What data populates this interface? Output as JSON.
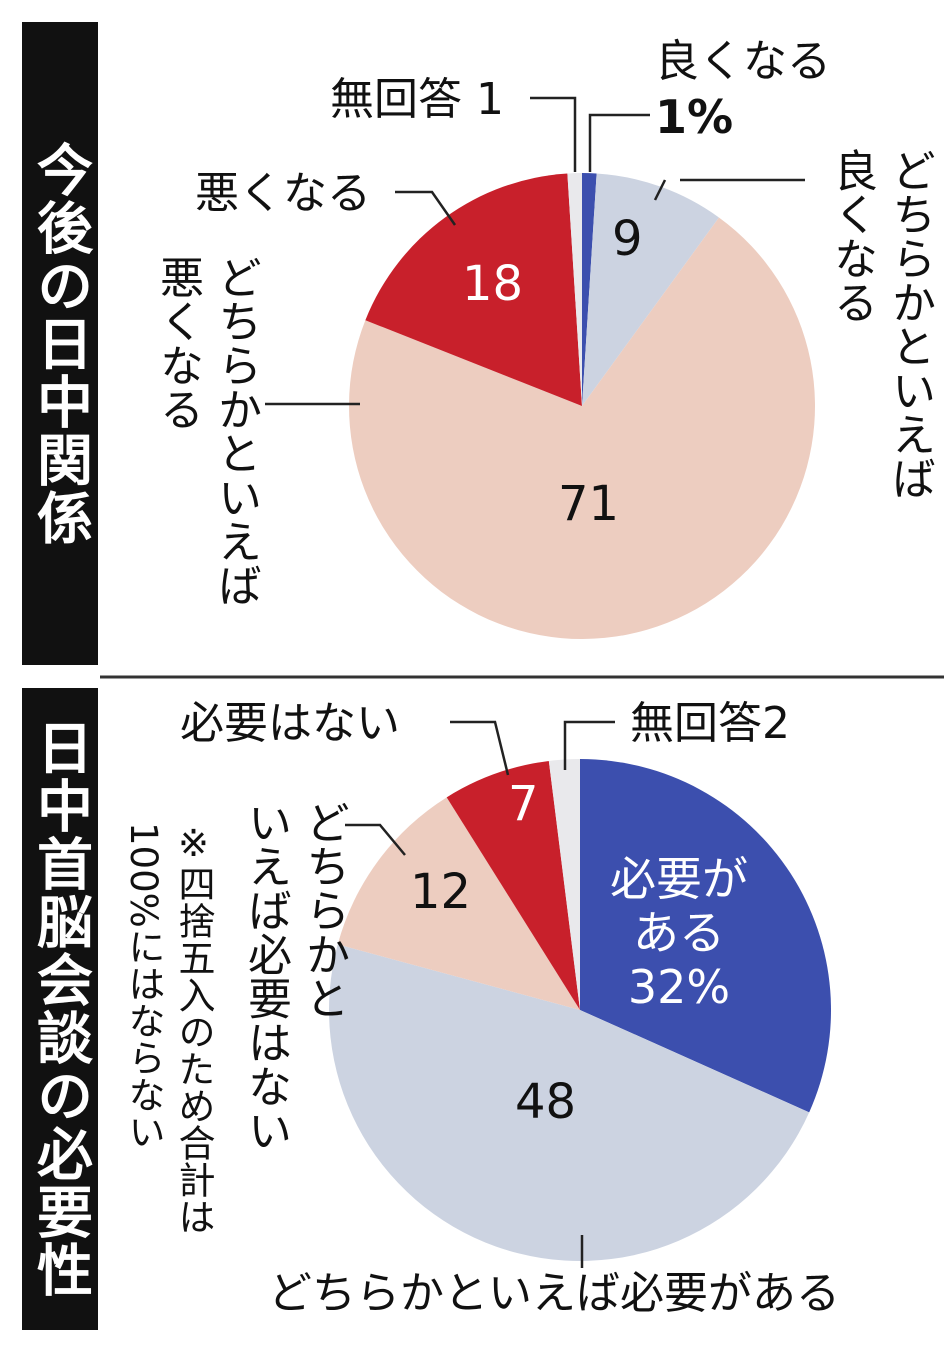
{
  "chart_data": [
    {
      "type": "pie",
      "title": "今後の日中関係",
      "unit": "%",
      "slices": [
        {
          "label": "良くなる",
          "value": 1,
          "color": "#3c4fae",
          "display": "1%"
        },
        {
          "label": "どちらかといえば良くなる",
          "value": 9,
          "color": "#ccd3e1",
          "display": "9"
        },
        {
          "label": "どちらかといえば悪くなる",
          "value": 71,
          "color": "#edcdc0",
          "display": "71"
        },
        {
          "label": "悪くなる",
          "value": 18,
          "color": "#c8202b",
          "display": "18"
        },
        {
          "label": "無回答",
          "value": 1,
          "color": "#e9e9ec",
          "display": "1"
        }
      ]
    },
    {
      "type": "pie",
      "title": "日中首脳会談の必要性",
      "unit": "%",
      "slices": [
        {
          "label": "必要がある",
          "value": 32,
          "color": "#3c4fae",
          "display": "32%"
        },
        {
          "label": "どちらかといえば必要がある",
          "value": 48,
          "color": "#ccd3e1",
          "display": "48"
        },
        {
          "label": "どちらかといえば必要はない",
          "value": 12,
          "color": "#edcdc0",
          "display": "12"
        },
        {
          "label": "必要はない",
          "value": 7,
          "color": "#c8202b",
          "display": "7"
        },
        {
          "label": "無回答",
          "value": 2,
          "color": "#e9e9ec",
          "display": "2"
        }
      ],
      "note": "※四捨五入のため合計は\n100%にはならない"
    }
  ],
  "labels": {
    "top_noanswer": "無回答 1",
    "top_good": "良くなる",
    "top_good_pct": "1%",
    "top_rgood": "どちらかといえば\n良くなる",
    "top_bad": "悪くなる",
    "top_rbad": "どちらかといえば\n悪くなる",
    "bot_notneeded": "必要はない",
    "bot_noanswer": "無回答2",
    "bot_rnotneeded": "どちらかと\nいえば必要はない",
    "bot_needed": "必要が\nある\n32%",
    "bot_rneeded": "どちらかといえば必要がある"
  }
}
